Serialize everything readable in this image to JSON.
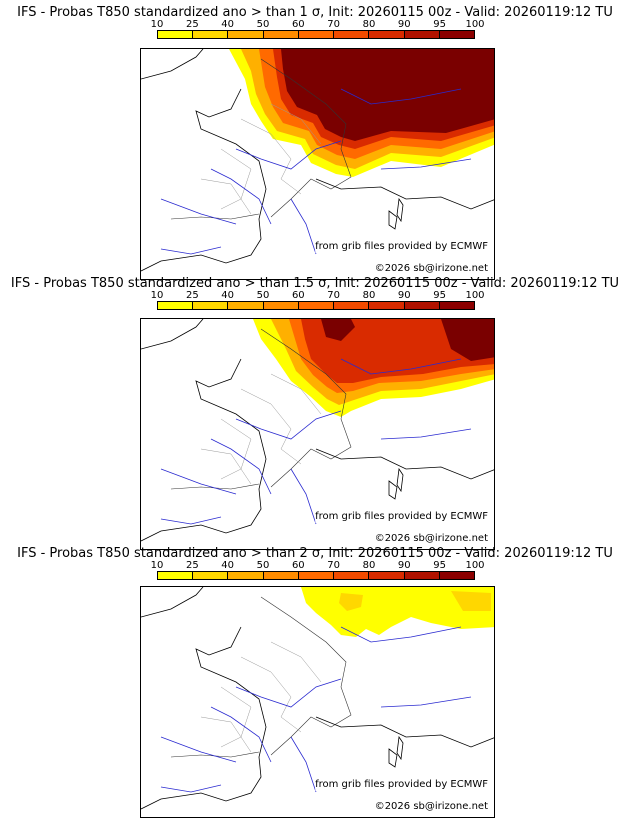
{
  "colorscale": {
    "labels": [
      "10",
      "25",
      "40",
      "50",
      "60",
      "70",
      "80",
      "90",
      "95",
      "100"
    ],
    "colors": [
      "#ffff00",
      "#ffd700",
      "#ffb000",
      "#ff8c00",
      "#ff6a00",
      "#f24b00",
      "#d92b00",
      "#b01200",
      "#8b0000",
      "#5a0000"
    ]
  },
  "panels": [
    {
      "title": "IFS - Probas T850  standardized ano > than 1 σ, Init: 20260115 00z - Valid: 20260119:12 TU",
      "source": "from grib files provided by ECMWF",
      "copyright": "©2026 sb@irizone.net"
    },
    {
      "title": "IFS - Probas T850  standardized ano > than 1.5 σ, Init: 20260115 00z - Valid: 20260119:12 TU",
      "source": "from grib files provided by ECMWF",
      "copyright": "©2026 sb@irizone.net"
    },
    {
      "title": "IFS - Probas T850  standardized ano > than 2 σ, Init: 20260115 00z - Valid: 20260119:12 TU",
      "source": "from grib files provided by ECMWF",
      "copyright": "©2026 sb@irizone.net"
    }
  ]
}
